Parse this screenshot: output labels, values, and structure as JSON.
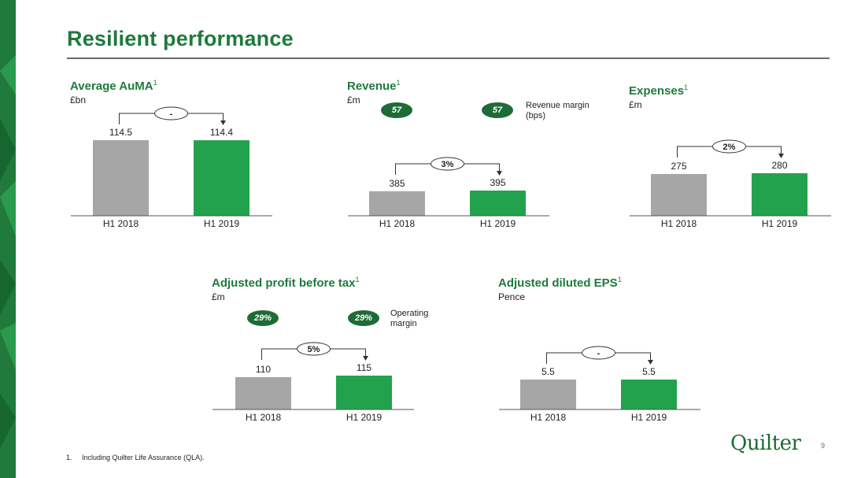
{
  "page_title": "Resilient performance",
  "footnote": {
    "number": "1.",
    "text": "Including Quilter Life Assurance (QLA)."
  },
  "logo_text": "Quilter",
  "page_number": "9",
  "colors": {
    "brand_green": "#1f7a3c",
    "bar_prior": "#a6a6a6",
    "bar_current": "#23a24d",
    "badge": "#1e6b36"
  },
  "chart_data": [
    {
      "type": "bar",
      "title": "Average AuMA",
      "title_sup": "1",
      "unit": "£bn",
      "categories": [
        "H1 2018",
        "H1 2019"
      ],
      "values": [
        114.5,
        114.4
      ],
      "value_labels": [
        "114.5",
        "114.4"
      ],
      "change_label": "-",
      "badges": [],
      "badge_label": ""
    },
    {
      "type": "bar",
      "title": "Revenue",
      "title_sup": "1",
      "unit": "£m",
      "categories": [
        "H1 2018",
        "H1 2019"
      ],
      "values": [
        385,
        395
      ],
      "value_labels": [
        "385",
        "395"
      ],
      "change_label": "3%",
      "badges": [
        "57",
        "57"
      ],
      "badge_label": "Revenue margin (bps)"
    },
    {
      "type": "bar",
      "title": "Expenses",
      "title_sup": "1",
      "unit": "£m",
      "categories": [
        "H1 2018",
        "H1 2019"
      ],
      "values": [
        275,
        280
      ],
      "value_labels": [
        "275",
        "280"
      ],
      "change_label": "2%",
      "badges": [],
      "badge_label": ""
    },
    {
      "type": "bar",
      "title": "Adjusted profit before tax",
      "title_sup": "1",
      "unit": "£m",
      "categories": [
        "H1 2018",
        "H1 2019"
      ],
      "values": [
        110,
        115
      ],
      "value_labels": [
        "110",
        "115"
      ],
      "change_label": "5%",
      "badges": [
        "29%",
        "29%"
      ],
      "badge_label": "Operating margin"
    },
    {
      "type": "bar",
      "title": "Adjusted diluted EPS",
      "title_sup": "1",
      "unit": "Pence",
      "categories": [
        "H1 2018",
        "H1 2019"
      ],
      "values": [
        5.5,
        5.5
      ],
      "value_labels": [
        "5.5",
        "5.5"
      ],
      "change_label": "-",
      "badges": [],
      "badge_label": ""
    }
  ]
}
